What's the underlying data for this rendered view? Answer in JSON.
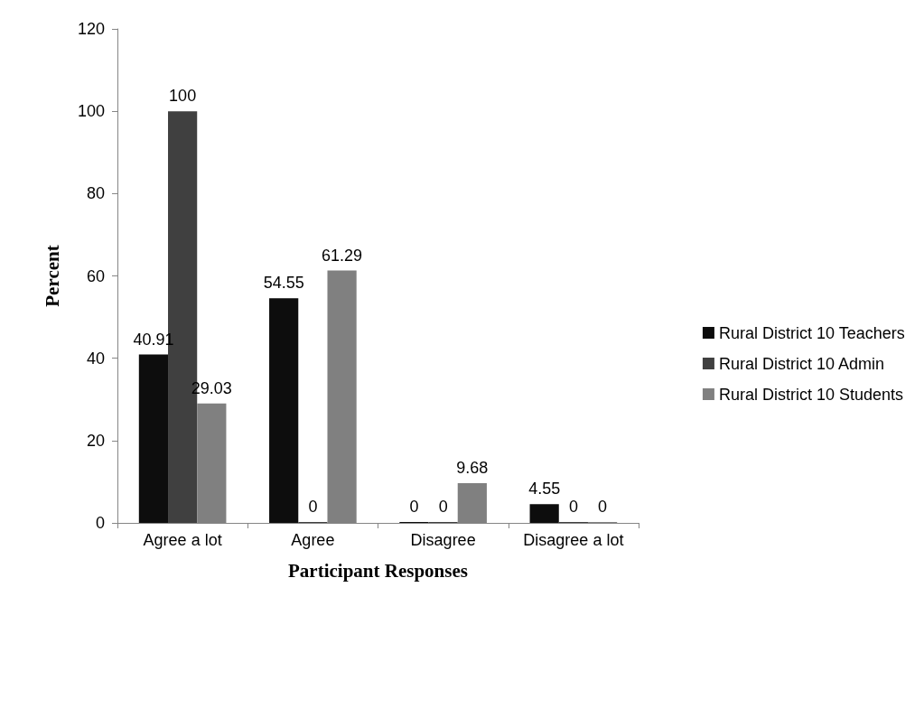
{
  "chart_data": {
    "type": "bar",
    "xlabel": "Participant Responses",
    "ylabel": "Percent",
    "categories": [
      "Agree a lot",
      "Agree",
      "Disagree",
      "Disagree a lot"
    ],
    "series": [
      {
        "name": "Rural District 10 Teachers",
        "color": "#0d0d0d",
        "values": [
          40.91,
          54.55,
          0,
          4.55
        ]
      },
      {
        "name": "Rural District 10 Admin",
        "color": "#404040",
        "values": [
          100,
          0,
          0,
          0
        ]
      },
      {
        "name": "Rural District 10 Students",
        "color": "#808080",
        "values": [
          29.03,
          61.29,
          9.68,
          0
        ]
      }
    ],
    "ylim": [
      0,
      120
    ],
    "yticks": [
      0,
      20,
      40,
      60,
      80,
      100,
      120
    ],
    "grid": false,
    "legend": "right",
    "data_labels": true
  }
}
